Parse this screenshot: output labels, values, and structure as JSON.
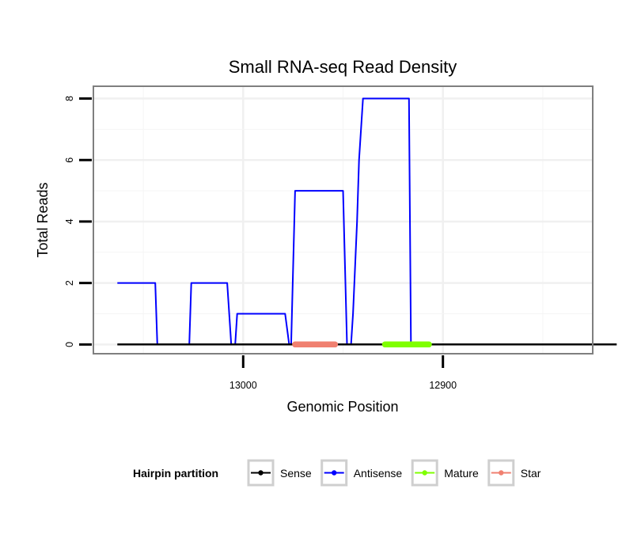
{
  "chart_data": {
    "type": "line",
    "title": "Small RNA-seq Read Density",
    "xlabel": "Genomic Position",
    "ylabel": "Total Reads",
    "x_reversed": true,
    "xlim": [
      13075,
      12825
    ],
    "ylim": [
      -0.3,
      8.4
    ],
    "x_ticks": [
      13000,
      12900
    ],
    "y_ticks": [
      0,
      2,
      4,
      6,
      8
    ],
    "x_tick_labels": [
      "13000",
      "12900"
    ],
    "y_tick_labels": [
      "0",
      "2",
      "4",
      "6",
      "8"
    ],
    "series": [
      {
        "name": "Antisense",
        "color": "#0000ff",
        "width": 2,
        "points": [
          [
            13063,
            2
          ],
          [
            13044,
            2
          ],
          [
            13043,
            0
          ],
          [
            13027,
            0
          ],
          [
            13026,
            2
          ],
          [
            13008,
            2
          ],
          [
            13006,
            0
          ],
          [
            13004,
            0
          ],
          [
            13003,
            1
          ],
          [
            12979,
            1
          ],
          [
            12977,
            0
          ],
          [
            12976,
            0
          ],
          [
            12974,
            5
          ],
          [
            12950,
            5
          ],
          [
            12948,
            0
          ],
          [
            12946,
            0
          ],
          [
            12945,
            1
          ],
          [
            12943,
            4
          ],
          [
            12942,
            6
          ],
          [
            12940,
            8
          ],
          [
            12917,
            8
          ],
          [
            12916,
            0
          ],
          [
            12894,
            0
          ]
        ]
      },
      {
        "name": "Sense",
        "color": "#000000",
        "width": 2.5,
        "points": [
          [
            13063,
            0
          ],
          [
            12813,
            0
          ]
        ]
      },
      {
        "name": "Star",
        "color": "#f08070",
        "width": 7.5,
        "points": [
          [
            12974,
            0
          ],
          [
            12954,
            0
          ]
        ]
      },
      {
        "name": "Mature",
        "color": "#7fff00",
        "width": 7.5,
        "points": [
          [
            12929,
            0
          ],
          [
            12907,
            0
          ]
        ]
      }
    ],
    "legend": {
      "title": "Hairpin partition",
      "position": "bottom",
      "entries": [
        {
          "label": "Sense",
          "color": "#000000"
        },
        {
          "label": "Antisense",
          "color": "#0000ff"
        },
        {
          "label": "Mature",
          "color": "#7fff00"
        },
        {
          "label": "Star",
          "color": "#f08070"
        }
      ]
    },
    "grid": true
  }
}
